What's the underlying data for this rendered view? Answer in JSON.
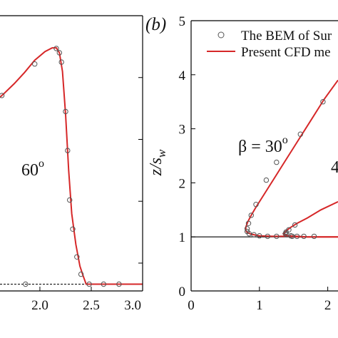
{
  "colors": {
    "cfd": "#d62728",
    "bem": "#555555",
    "axis": "#000000",
    "baseline": "#000000"
  },
  "chart_data": [
    {
      "panel": "a",
      "type": "line",
      "title": "",
      "xlabel": "",
      "ylabel": "",
      "xlim": [
        1.57,
        3.0
      ],
      "ylim": [
        0.55,
        5.0
      ],
      "x_ticks": [
        2.0,
        2.5,
        3.0
      ],
      "x_tick_labels": [
        "2.0",
        "2.5",
        "3.0"
      ],
      "y_ticks": [
        1,
        2,
        3,
        4,
        5
      ],
      "annotations": [
        {
          "text": "60°",
          "x": 2.0,
          "y": 2.8
        }
      ],
      "series": [
        {
          "style": "line",
          "x": [
            1.57,
            1.65,
            1.75,
            1.85,
            1.95,
            2.05,
            2.12,
            2.16,
            2.19,
            2.22,
            2.25,
            2.28,
            2.31,
            2.35,
            2.39,
            2.42,
            2.45,
            3.0
          ],
          "y": [
            3.62,
            3.74,
            3.9,
            4.08,
            4.28,
            4.42,
            4.48,
            4.48,
            4.4,
            4.1,
            3.4,
            2.5,
            1.8,
            1.3,
            0.95,
            0.8,
            0.66,
            0.66
          ]
        },
        {
          "style": "markers",
          "x": [
            1.63,
            1.95,
            2.16,
            2.19,
            2.21,
            2.25,
            2.27,
            2.29,
            2.32,
            2.36,
            2.4,
            2.48,
            2.62,
            2.77,
            1.55,
            1.86
          ],
          "y": [
            3.71,
            4.22,
            4.47,
            4.4,
            4.25,
            3.45,
            2.82,
            2.02,
            1.55,
            1.1,
            0.82,
            0.66,
            0.66,
            0.66,
            0.66,
            0.66
          ]
        }
      ]
    },
    {
      "panel": "b",
      "panel_label": "(b)",
      "type": "line",
      "title": "",
      "xlabel": "",
      "ylabel": "z/s_w",
      "ylabel_parts": {
        "main": "z/s",
        "sub": "w"
      },
      "xlim": [
        0,
        2.15
      ],
      "ylim": [
        0,
        5
      ],
      "x_ticks": [
        0,
        1,
        2
      ],
      "x_tick_labels": [
        "0",
        "1",
        "2"
      ],
      "y_ticks": [
        0,
        1,
        2,
        3,
        4,
        5
      ],
      "y_tick_labels": [
        "0",
        "1",
        "2",
        "3",
        "4",
        "5"
      ],
      "baseline_y": 1.0,
      "annotations": [
        {
          "text": "β = 30°",
          "parts": [
            "β = 30",
            "o"
          ],
          "x": 0.93,
          "y": 3.0
        },
        {
          "text": "4",
          "x": 2.12,
          "y": 1.65
        }
      ],
      "legend": {
        "placement": "top-right",
        "entries": [
          {
            "label": "The BEM of Sur",
            "marker": "circle"
          },
          {
            "label": "Present CFD me",
            "marker": "line"
          }
        ]
      },
      "series": [
        {
          "style": "line",
          "x": [
            2.15,
            1.95,
            1.75,
            1.55,
            1.35,
            1.2,
            1.05,
            0.95,
            0.88,
            0.83,
            0.8,
            0.8,
            0.82,
            0.88,
            1.0,
            1.2,
            1.4,
            1.6,
            1.8,
            2.0,
            2.15
          ],
          "y": [
            3.9,
            3.55,
            3.15,
            2.75,
            2.35,
            2.05,
            1.75,
            1.55,
            1.4,
            1.28,
            1.18,
            1.12,
            1.08,
            1.05,
            1.02,
            1.01,
            1.01,
            1.0,
            1.0,
            1.0,
            1.0
          ]
        },
        {
          "style": "line",
          "x": [
            2.15,
            1.9,
            1.7,
            1.55,
            1.45,
            1.38,
            1.35,
            1.37,
            1.43,
            1.55,
            1.7,
            1.9,
            2.15
          ],
          "y": [
            1.65,
            1.5,
            1.35,
            1.25,
            1.17,
            1.1,
            1.06,
            1.04,
            1.02,
            1.01,
            1.0,
            1.0,
            1.0
          ]
        },
        {
          "style": "markers",
          "x": [
            1.93,
            1.6,
            1.25,
            1.1,
            0.95,
            0.88,
            0.84,
            0.82,
            0.82,
            0.85,
            0.92,
            1.0,
            1.12,
            1.25,
            1.48,
            1.52,
            1.43,
            1.39,
            1.38,
            1.4,
            1.46,
            1.55,
            1.65,
            1.8
          ],
          "y": [
            3.5,
            2.9,
            2.38,
            2.05,
            1.6,
            1.4,
            1.25,
            1.15,
            1.1,
            1.06,
            1.04,
            1.02,
            1.01,
            1.01,
            1.01,
            1.22,
            1.13,
            1.09,
            1.06,
            1.04,
            1.02,
            1.01,
            1.01,
            1.01
          ]
        }
      ]
    }
  ]
}
